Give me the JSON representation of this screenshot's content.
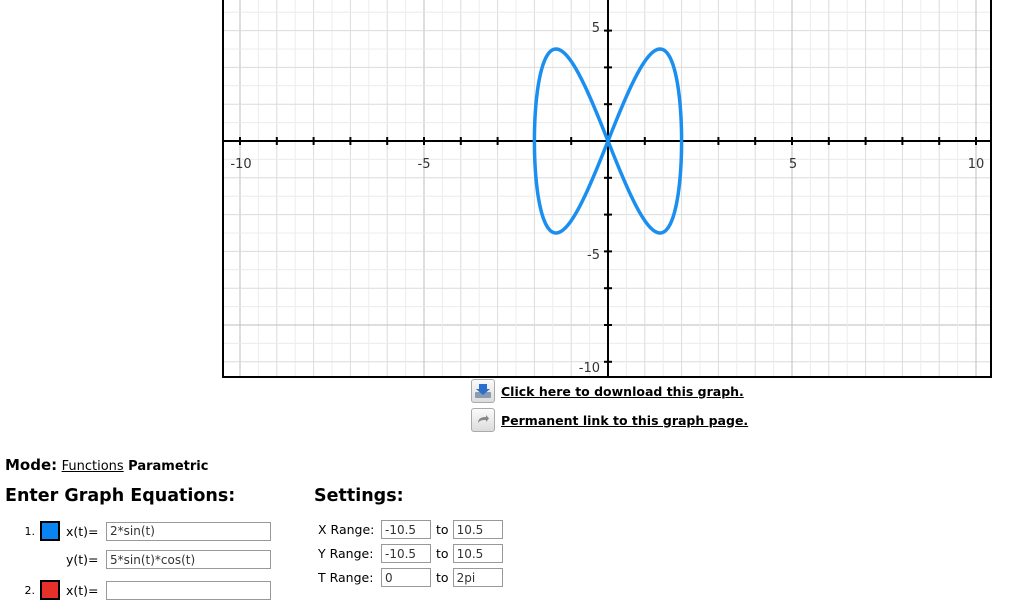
{
  "graph": {
    "x_ticks": [
      "-10",
      "-5",
      "5",
      "10"
    ],
    "y_ticks": [
      "5",
      "-5",
      "-10"
    ],
    "curve_color": "#1a8ff0",
    "axis_ranges": {
      "x": [
        -10.5,
        10.5
      ],
      "y": [
        -10.5,
        10.5
      ]
    },
    "curve": {
      "x_expr": "2*sin(t)",
      "y_expr": "5*sin(t)*cos(t)",
      "t_range": [
        0,
        6.2832
      ]
    }
  },
  "links": {
    "download": "Click here to download this graph.",
    "permalink": "Permanent link to this graph page."
  },
  "mode": {
    "label": "Mode:",
    "functions": "Functions",
    "current": "Parametric"
  },
  "equations": {
    "heading": "Enter Graph Equations:",
    "items": [
      {
        "num": "1.",
        "color": "#0a84f0",
        "x_label": "x(t)=",
        "x_value": "2*sin(t)",
        "y_label": "y(t)=",
        "y_value": "5*sin(t)*cos(t)"
      },
      {
        "num": "2.",
        "color": "#e8302a",
        "x_label": "x(t)=",
        "x_value": ""
      }
    ]
  },
  "settings": {
    "heading": "Settings:",
    "to": "to",
    "x_range": {
      "label": "X Range:",
      "min": "-10.5",
      "max": "10.5"
    },
    "y_range": {
      "label": "Y Range:",
      "min": "-10.5",
      "max": "10.5"
    },
    "t_range": {
      "label": "T Range:",
      "min": "0",
      "max": "2pi"
    }
  }
}
